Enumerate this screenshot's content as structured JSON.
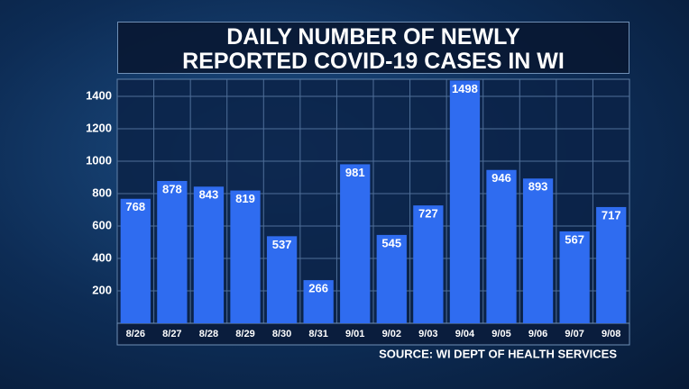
{
  "chart_data": {
    "type": "bar",
    "title": "DAILY NUMBER OF NEWLY REPORTED COVID-19 CASES IN WI",
    "categories": [
      "8/26",
      "8/27",
      "8/28",
      "8/29",
      "8/30",
      "8/31",
      "9/01",
      "9/02",
      "9/03",
      "9/04",
      "9/05",
      "9/06",
      "9/07",
      "9/08"
    ],
    "values": [
      768,
      878,
      843,
      819,
      537,
      266,
      981,
      545,
      727,
      1498,
      946,
      893,
      567,
      717
    ],
    "color": "#2f6cf0",
    "ylim": [
      0,
      1500
    ],
    "yticks": [
      200,
      400,
      600,
      800,
      1000,
      1200,
      1400
    ],
    "grid": true,
    "annotation": "SOURCE: WI DEPT OF HEALTH SERVICES"
  }
}
